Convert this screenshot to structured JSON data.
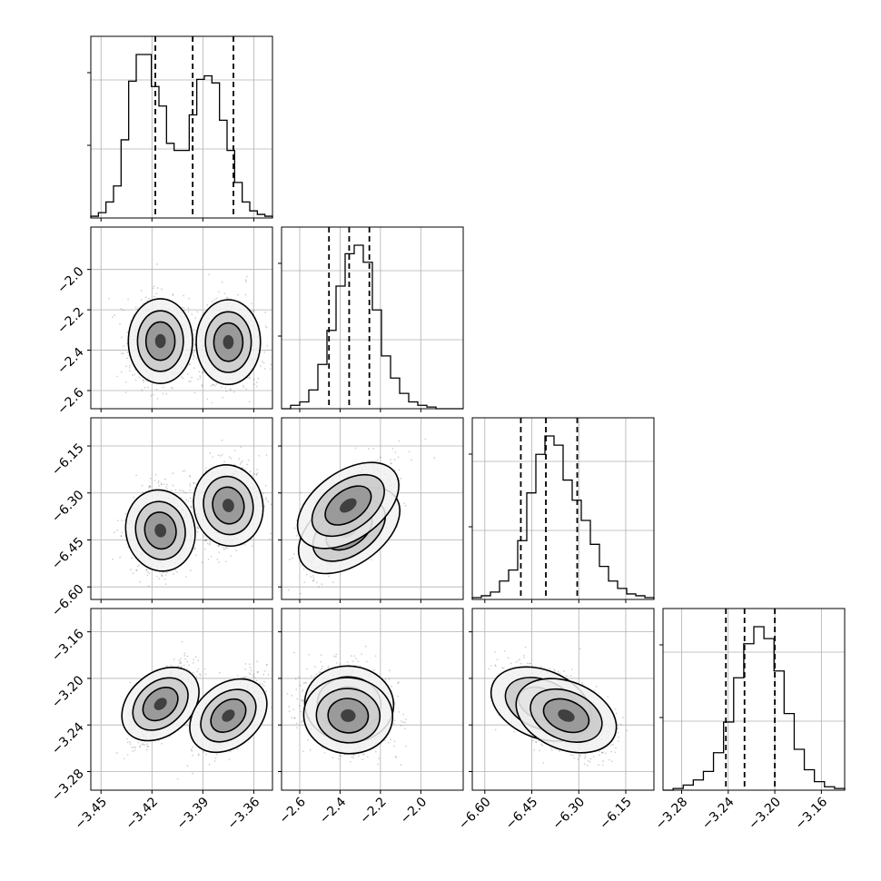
{
  "chart_data": {
    "type": "corner",
    "grid": true,
    "parameters": [
      {
        "ticks": [
          "−3.45",
          "−3.42",
          "−3.39",
          "−3.36"
        ],
        "tick_values": [
          -3.45,
          -3.42,
          -3.39,
          -3.36
        ],
        "range": [
          -3.456,
          -3.349
        ],
        "quantiles": [
          -3.418,
          -3.396,
          -3.372
        ],
        "hist": [
          1,
          3,
          9,
          18,
          44,
          77,
          92,
          92,
          74,
          63,
          42,
          38,
          38,
          58,
          78,
          80,
          76,
          55,
          38,
          20,
          9,
          4,
          2,
          1
        ],
        "modes": [
          -3.415,
          -3.375
        ]
      },
      {
        "ticks": [
          "−2.6",
          "−2.4",
          "−2.2",
          "−2.0"
        ],
        "tick_values": [
          -2.6,
          -2.4,
          -2.2,
          -2.0
        ],
        "range": [
          -2.69,
          -1.79
        ],
        "quantiles": [
          -2.455,
          -2.355,
          -2.255
        ],
        "hist": [
          0,
          2,
          4,
          11,
          26,
          46,
          72,
          91,
          96,
          86,
          58,
          31,
          18,
          9,
          4,
          2,
          1,
          0,
          0,
          0
        ],
        "modes": [
          -2.36
        ]
      },
      {
        "ticks": [
          "−6.60",
          "−6.45",
          "−6.30",
          "−6.15"
        ],
        "tick_values": [
          -6.6,
          -6.45,
          -6.3,
          -6.15
        ],
        "range": [
          -6.64,
          -6.06
        ],
        "quantiles": [
          -6.485,
          -6.405,
          -6.305
        ],
        "hist": [
          1,
          2,
          4,
          10,
          16,
          32,
          58,
          79,
          89,
          84,
          65,
          54,
          43,
          30,
          18,
          10,
          6,
          3,
          2,
          1
        ],
        "modes": [
          -6.425,
          -6.33
        ]
      },
      {
        "ticks": [
          "−3.28",
          "−3.24",
          "−3.20",
          "−3.16"
        ],
        "tick_values": [
          -3.28,
          -3.24,
          -3.2,
          -3.16
        ],
        "range": [
          -3.296,
          -3.14
        ],
        "quantiles": [
          -3.242,
          -3.226,
          -3.2
        ],
        "hist": [
          0,
          1,
          3,
          6,
          11,
          22,
          40,
          66,
          86,
          96,
          89,
          70,
          45,
          24,
          12,
          5,
          2,
          1
        ],
        "modes": [
          -3.225,
          -3.232
        ]
      }
    ],
    "joint_components": [
      {
        "weight": 0.5,
        "means": [
          -3.415,
          -2.355,
          -6.42,
          -3.222
        ]
      },
      {
        "weight": 0.5,
        "means": [
          -3.375,
          -2.36,
          -6.34,
          -3.232
        ]
      }
    ],
    "contour_levels": 3
  }
}
